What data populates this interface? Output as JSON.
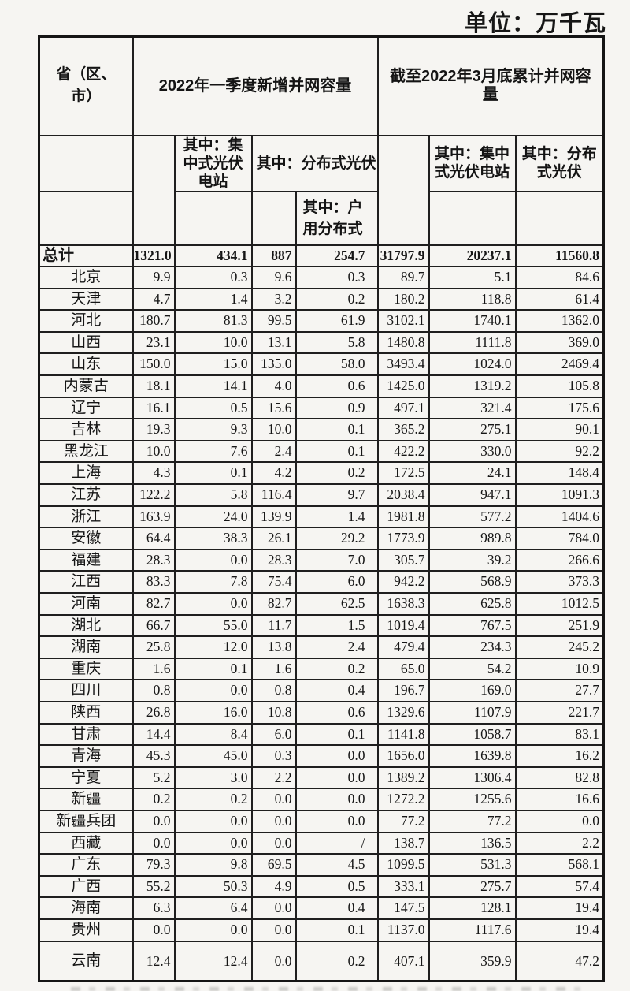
{
  "unit_label": "单位：万千瓦",
  "table": {
    "headers": {
      "province": "省（区、市）",
      "new_section": "2022年一季度新增并网容量",
      "cum_section": "截至2022年3月底累计并网容量",
      "new_centralized": "其中：集中式光伏电站",
      "new_distributed": "其中：分布式光伏",
      "new_household": "其中：户用分布式",
      "cum_centralized": "其中：集中式光伏电站",
      "cum_distributed": "其中：分布式光伏"
    },
    "rows": [
      {
        "label": "总计",
        "total": true,
        "values": [
          "1321.0",
          "434.1",
          "887",
          "254.7",
          "31797.9",
          "20237.1",
          "11560.8"
        ]
      },
      {
        "label": "北京",
        "values": [
          "9.9",
          "0.3",
          "9.6",
          "0.3",
          "89.7",
          "5.1",
          "84.6"
        ]
      },
      {
        "label": "天津",
        "values": [
          "4.7",
          "1.4",
          "3.2",
          "0.2",
          "180.2",
          "118.8",
          "61.4"
        ]
      },
      {
        "label": "河北",
        "values": [
          "180.7",
          "81.3",
          "99.5",
          "61.9",
          "3102.1",
          "1740.1",
          "1362.0"
        ]
      },
      {
        "label": "山西",
        "values": [
          "23.1",
          "10.0",
          "13.1",
          "5.8",
          "1480.8",
          "1111.8",
          "369.0"
        ]
      },
      {
        "label": "山东",
        "values": [
          "150.0",
          "15.0",
          "135.0",
          "58.0",
          "3493.4",
          "1024.0",
          "2469.4"
        ]
      },
      {
        "label": "内蒙古",
        "values": [
          "18.1",
          "14.1",
          "4.0",
          "0.6",
          "1425.0",
          "1319.2",
          "105.8"
        ]
      },
      {
        "label": "辽宁",
        "values": [
          "16.1",
          "0.5",
          "15.6",
          "0.9",
          "497.1",
          "321.4",
          "175.6"
        ]
      },
      {
        "label": "吉林",
        "values": [
          "19.3",
          "9.3",
          "10.0",
          "0.1",
          "365.2",
          "275.1",
          "90.1"
        ]
      },
      {
        "label": "黑龙江",
        "values": [
          "10.0",
          "7.6",
          "2.4",
          "0.1",
          "422.2",
          "330.0",
          "92.2"
        ]
      },
      {
        "label": "上海",
        "values": [
          "4.3",
          "0.1",
          "4.2",
          "0.2",
          "172.5",
          "24.1",
          "148.4"
        ]
      },
      {
        "label": "江苏",
        "values": [
          "122.2",
          "5.8",
          "116.4",
          "9.7",
          "2038.4",
          "947.1",
          "1091.3"
        ]
      },
      {
        "label": "浙江",
        "values": [
          "163.9",
          "24.0",
          "139.9",
          "1.4",
          "1981.8",
          "577.2",
          "1404.6"
        ]
      },
      {
        "label": "安徽",
        "values": [
          "64.4",
          "38.3",
          "26.1",
          "29.2",
          "1773.9",
          "989.8",
          "784.0"
        ]
      },
      {
        "label": "福建",
        "values": [
          "28.3",
          "0.0",
          "28.3",
          "7.0",
          "305.7",
          "39.2",
          "266.6"
        ]
      },
      {
        "label": "江西",
        "values": [
          "83.3",
          "7.8",
          "75.4",
          "6.0",
          "942.2",
          "568.9",
          "373.3"
        ]
      },
      {
        "label": "河南",
        "values": [
          "82.7",
          "0.0",
          "82.7",
          "62.5",
          "1638.3",
          "625.8",
          "1012.5"
        ]
      },
      {
        "label": "湖北",
        "values": [
          "66.7",
          "55.0",
          "11.7",
          "1.5",
          "1019.4",
          "767.5",
          "251.9"
        ]
      },
      {
        "label": "湖南",
        "values": [
          "25.8",
          "12.0",
          "13.8",
          "2.4",
          "479.4",
          "234.3",
          "245.2"
        ]
      },
      {
        "label": "重庆",
        "values": [
          "1.6",
          "0.1",
          "1.6",
          "0.2",
          "65.0",
          "54.2",
          "10.9"
        ]
      },
      {
        "label": "四川",
        "values": [
          "0.8",
          "0.0",
          "0.8",
          "0.4",
          "196.7",
          "169.0",
          "27.7"
        ]
      },
      {
        "label": "陕西",
        "values": [
          "26.8",
          "16.0",
          "10.8",
          "0.6",
          "1329.6",
          "1107.9",
          "221.7"
        ]
      },
      {
        "label": "甘肃",
        "values": [
          "14.4",
          "8.4",
          "6.0",
          "0.1",
          "1141.8",
          "1058.7",
          "83.1"
        ]
      },
      {
        "label": "青海",
        "values": [
          "45.3",
          "45.0",
          "0.3",
          "0.0",
          "1656.0",
          "1639.8",
          "16.2"
        ]
      },
      {
        "label": "宁夏",
        "values": [
          "5.2",
          "3.0",
          "2.2",
          "0.0",
          "1389.2",
          "1306.4",
          "82.8"
        ]
      },
      {
        "label": "新疆",
        "values": [
          "0.2",
          "0.2",
          "0.0",
          "0.0",
          "1272.2",
          "1255.6",
          "16.6"
        ]
      },
      {
        "label": "新疆兵团",
        "values": [
          "0.0",
          "0.0",
          "0.0",
          "0.0",
          "77.2",
          "77.2",
          "0.0"
        ]
      },
      {
        "label": "西藏",
        "values": [
          "0.0",
          "0.0",
          "0.0",
          "/",
          "138.7",
          "136.5",
          "2.2"
        ]
      },
      {
        "label": "广东",
        "values": [
          "79.3",
          "9.8",
          "69.5",
          "4.5",
          "1099.5",
          "531.3",
          "568.1"
        ]
      },
      {
        "label": "广西",
        "values": [
          "55.2",
          "50.3",
          "4.9",
          "0.5",
          "333.1",
          "275.7",
          "57.4"
        ]
      },
      {
        "label": "海南",
        "values": [
          "6.3",
          "6.4",
          "0.0",
          "0.4",
          "147.5",
          "128.1",
          "19.4"
        ]
      },
      {
        "label": "贵州",
        "values": [
          "0.0",
          "0.0",
          "0.0",
          "0.1",
          "1137.0",
          "1117.6",
          "19.4"
        ]
      },
      {
        "label": "云南",
        "tall": true,
        "values": [
          "12.4",
          "12.4",
          "0.0",
          "0.2",
          "407.1",
          "359.9",
          "47.2"
        ]
      }
    ]
  }
}
